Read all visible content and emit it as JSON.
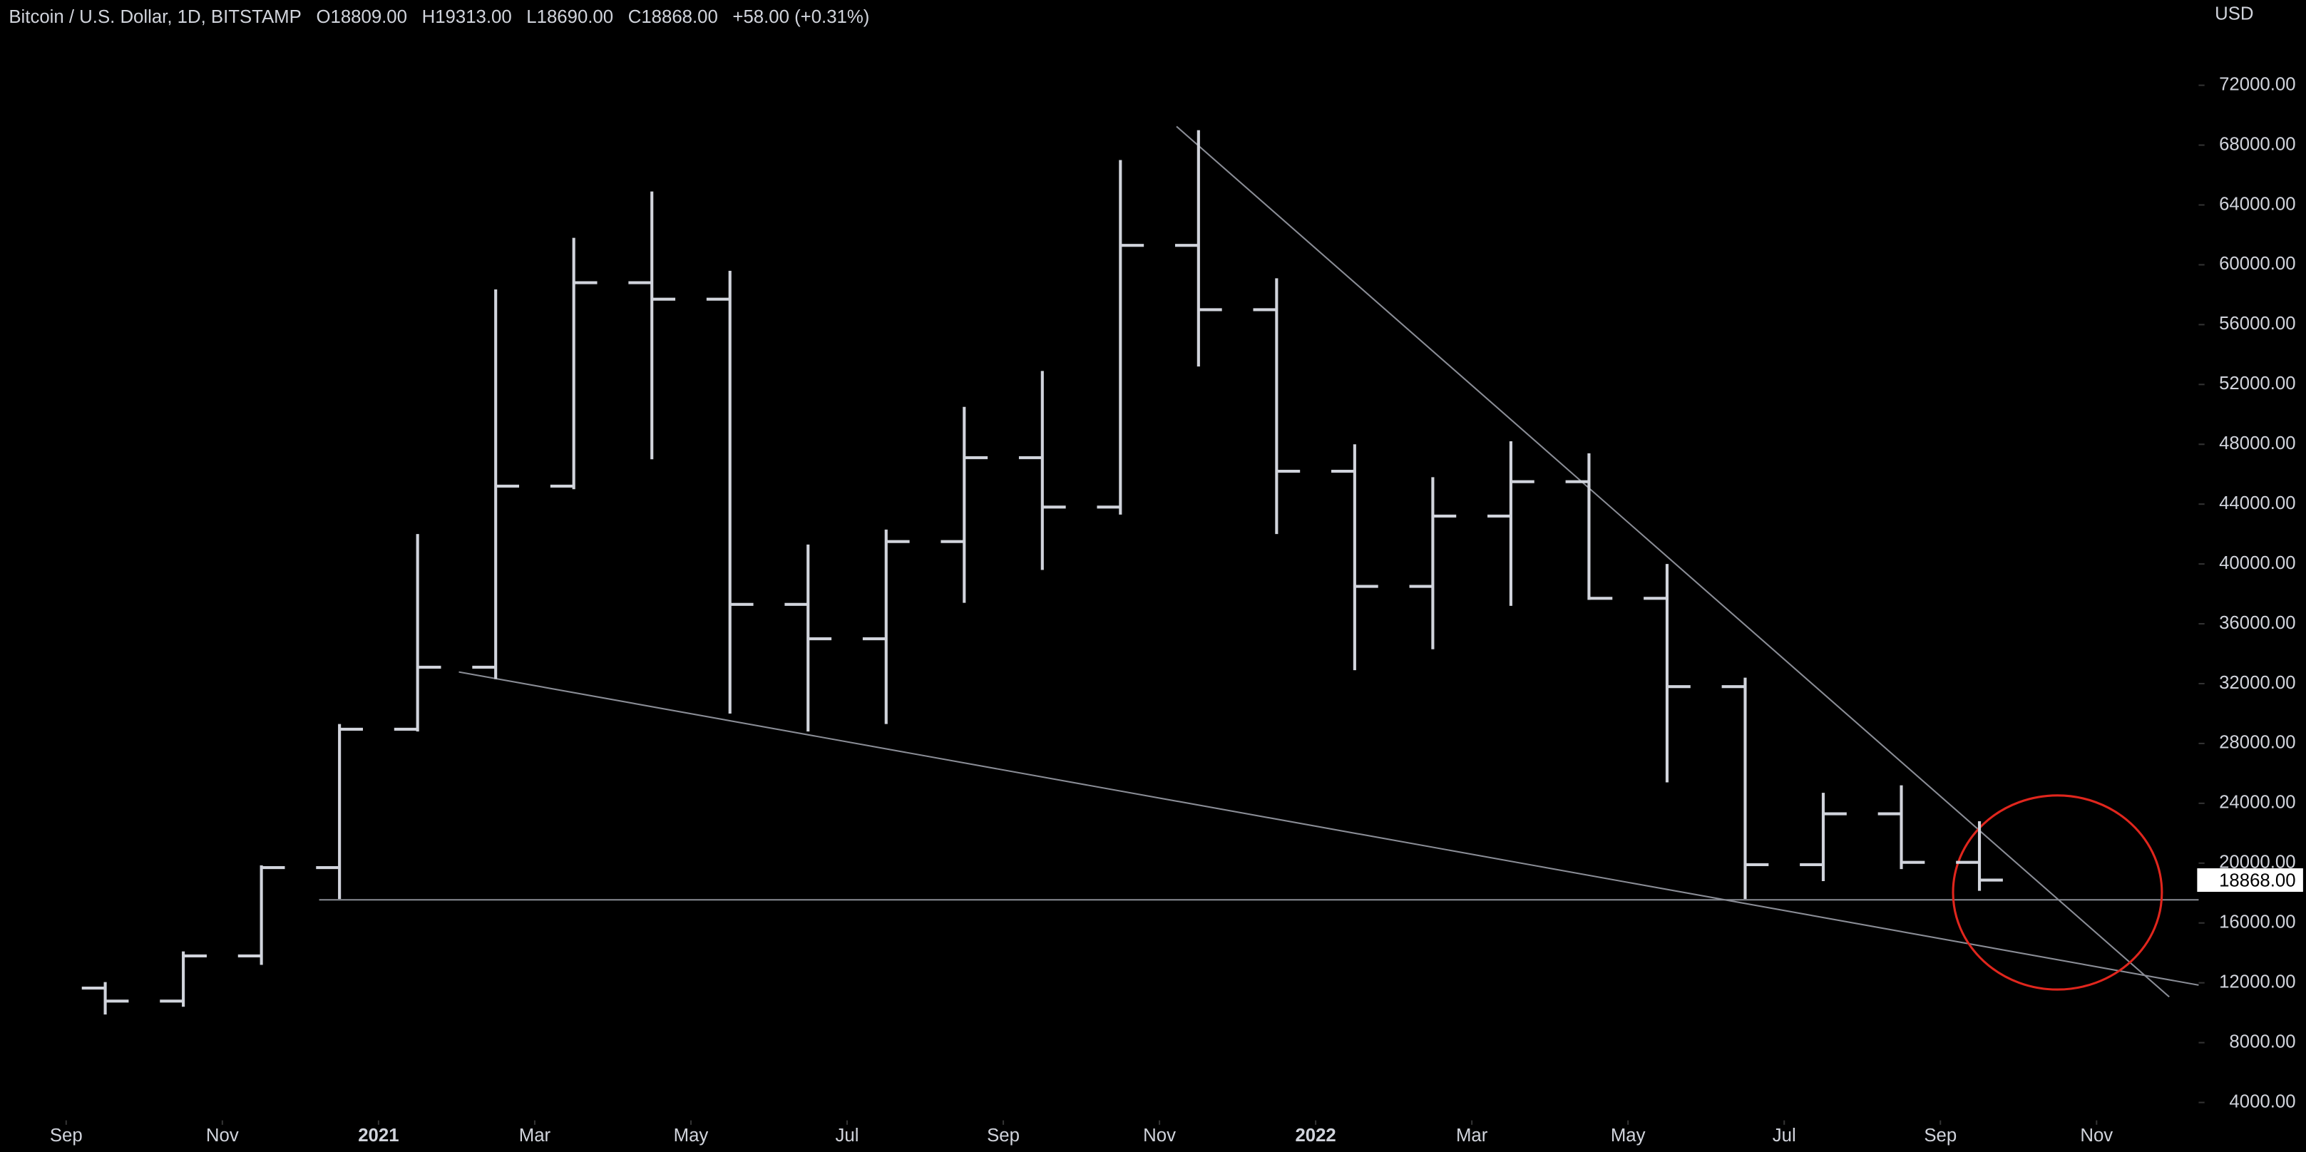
{
  "chart_data": {
    "type": "ohlc",
    "title": "Bitcoin / U.S. Dollar, 1D, BITSTAMP",
    "legend_values": [
      "O18809.00",
      "H19313.00",
      "L18690.00",
      "C18868.00",
      "+58.00 (+0.31%)"
    ],
    "currency": "USD",
    "color": "#d1d4dc",
    "x": [
      "2020-09",
      "2020-10",
      "2020-11",
      "2020-12",
      "2021-01",
      "2021-02",
      "2021-03",
      "2021-04",
      "2021-05",
      "2021-06",
      "2021-07",
      "2021-08",
      "2021-09",
      "2021-10",
      "2021-11",
      "2021-12",
      "2022-01",
      "2022-02",
      "2022-03",
      "2022-04",
      "2022-05",
      "2022-06",
      "2022-07",
      "2022-08",
      "2022-09"
    ],
    "open": [
      11650,
      10780,
      13800,
      19700,
      28950,
      33100,
      45200,
      58800,
      57700,
      37300,
      35000,
      41500,
      47100,
      43800,
      61300,
      57000,
      46200,
      38500,
      43200,
      45500,
      37700,
      31800,
      19900,
      23300,
      20050
    ],
    "high": [
      12050,
      14100,
      19850,
      29300,
      42000,
      58350,
      61800,
      64900,
      59600,
      41300,
      42300,
      50500,
      52900,
      67000,
      69000,
      59100,
      48000,
      45800,
      48200,
      47400,
      40000,
      32400,
      24700,
      25200,
      22800
    ],
    "low": [
      9880,
      10400,
      13200,
      17600,
      28800,
      32300,
      45000,
      47000,
      30000,
      28800,
      29300,
      37400,
      39600,
      43300,
      53200,
      42000,
      32900,
      34300,
      37200,
      37600,
      25400,
      17600,
      18800,
      19600,
      18150
    ],
    "close": [
      10780,
      13800,
      19700,
      28950,
      33100,
      45200,
      58800,
      57700,
      37300,
      35000,
      41500,
      47100,
      43800,
      61300,
      57000,
      46200,
      38500,
      43200,
      45500,
      37700,
      31800,
      19900,
      23300,
      20050,
      18868
    ],
    "last_price": {
      "value": 18868,
      "label": "18868.00"
    },
    "ylim": [
      3000,
      77700
    ],
    "yticks": [
      {
        "value": 4000,
        "label": "4000.00"
      },
      {
        "value": 8000,
        "label": "8000.00"
      },
      {
        "value": 12000,
        "label": "12000.00"
      },
      {
        "value": 16000,
        "label": "16000.00"
      },
      {
        "value": 20000,
        "label": "20000.00"
      },
      {
        "value": 24000,
        "label": "24000.00"
      },
      {
        "value": 28000,
        "label": "28000.00"
      },
      {
        "value": 32000,
        "label": "32000.00"
      },
      {
        "value": 36000,
        "label": "36000.00"
      },
      {
        "value": 40000,
        "label": "40000.00"
      },
      {
        "value": 44000,
        "label": "44000.00"
      },
      {
        "value": 48000,
        "label": "48000.00"
      },
      {
        "value": 52000,
        "label": "52000.00"
      },
      {
        "value": 56000,
        "label": "56000.00"
      },
      {
        "value": 60000,
        "label": "60000.00"
      },
      {
        "value": 64000,
        "label": "64000.00"
      },
      {
        "value": 68000,
        "label": "68000.00"
      },
      {
        "value": 72000,
        "label": "72000.00"
      }
    ],
    "xticks": [
      {
        "value": "2020-09",
        "label": "Sep"
      },
      {
        "value": "2020-11",
        "label": "Nov"
      },
      {
        "value": "2021-01",
        "label": "2021"
      },
      {
        "value": "2021-03",
        "label": "Mar"
      },
      {
        "value": "2021-05",
        "label": "May"
      },
      {
        "value": "2021-07",
        "label": "Jul"
      },
      {
        "value": "2021-09",
        "label": "Sep"
      },
      {
        "value": "2021-11",
        "label": "Nov"
      },
      {
        "value": "2022-01",
        "label": "2022"
      },
      {
        "value": "2022-03",
        "label": "Mar"
      },
      {
        "value": "2022-05",
        "label": "May"
      },
      {
        "value": "2022-07",
        "label": "Jul"
      },
      {
        "value": "2022-09",
        "label": "Sep"
      },
      {
        "value": "2022-11",
        "label": "Nov"
      }
    ]
  }
}
